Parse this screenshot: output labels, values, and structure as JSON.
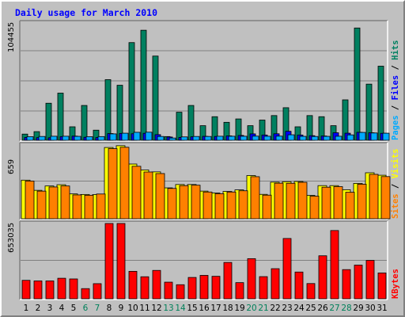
{
  "chart_data": {
    "type": "bar",
    "title": "Daily usage for March 2010",
    "categories": [
      "1",
      "2",
      "3",
      "4",
      "5",
      "6",
      "7",
      "8",
      "9",
      "10",
      "11",
      "12",
      "13",
      "14",
      "15",
      "16",
      "17",
      "18",
      "19",
      "20",
      "21",
      "22",
      "23",
      "24",
      "25",
      "26",
      "27",
      "28",
      "29",
      "30",
      "31"
    ],
    "weekend_days": [
      "6",
      "7",
      "13",
      "14",
      "20",
      "21",
      "27",
      "28"
    ],
    "panels": [
      {
        "id": "hits",
        "max_label": "104455",
        "ylim": [
          0,
          104455
        ],
        "axis_labels": [
          {
            "text": "Pages",
            "color": "#00aaff"
          },
          {
            "text": " / ",
            "color": "#000000"
          },
          {
            "text": "Files",
            "color": "#0000ff"
          },
          {
            "text": " / ",
            "color": "#000000"
          },
          {
            "text": "Hits",
            "color": "#008060"
          }
        ],
        "series": [
          {
            "name": "Hits",
            "color": "#008060",
            "values": [
              5500,
              7700,
              33000,
              42000,
              12000,
              31000,
              9000,
              54000,
              49000,
              87000,
              98000,
              75000,
              3300,
              25000,
              31000,
              13000,
              21000,
              16000,
              19000,
              13000,
              18000,
              22000,
              29000,
              12000,
              22000,
              21000,
              13000,
              36000,
              100000,
              50000,
              66000
            ]
          },
          {
            "name": "Files",
            "color": "#0000ff",
            "values": [
              2500,
              2300,
              2200,
              3300,
              3700,
              2700,
              2400,
              6000,
              6100,
              5800,
              6200,
              5000,
              2900,
              2500,
              3100,
              3500,
              3400,
              3900,
              4300,
              5700,
              4700,
              5800,
              8000,
              4700,
              4100,
              3800,
              6700,
              6300,
              7100,
              6700,
              6200
            ]
          },
          {
            "name": "Pages",
            "color": "#00aaff",
            "values": [
              3200,
              3400,
              3600,
              3600,
              3500,
              3200,
              3300,
              5700,
              6300,
              7100,
              7200,
              3400,
              2000,
              3000,
              3400,
              3400,
              3600,
              3600,
              3600,
              3700,
              3600,
              3700,
              4900,
              3500,
              3400,
              3500,
              3600,
              4800,
              7000,
              6500,
              6300
            ]
          }
        ]
      },
      {
        "id": "visits",
        "max_label": "659",
        "ylim": [
          0,
          659
        ],
        "axis_labels": [
          {
            "text": "Sites",
            "color": "#ff8000"
          },
          {
            "text": " / ",
            "color": "#000000"
          },
          {
            "text": "Visits",
            "color": "#ffff00"
          }
        ],
        "series": [
          {
            "name": "Visits",
            "color": "#ffff00",
            "values": [
              345,
              254,
              293,
              304,
              222,
              217,
              216,
              637,
              653,
              489,
              436,
              419,
              276,
              306,
              306,
              247,
              230,
              244,
              258,
              386,
              218,
              327,
              331,
              333,
              209,
              296,
              296,
              259,
              316,
              411,
              389
            ]
          },
          {
            "name": "Sites",
            "color": "#ff8000",
            "values": [
              337,
              247,
              284,
              293,
              213,
              210,
              221,
              627,
              639,
              469,
              418,
              404,
              271,
              296,
              300,
              239,
              224,
              239,
              250,
              376,
              211,
              318,
              317,
              326,
              202,
              282,
              287,
              237,
              309,
              397,
              377
            ]
          }
        ]
      },
      {
        "id": "kbytes",
        "max_label": "653035",
        "ylim": [
          0,
          653035
        ],
        "axis_labels": [
          {
            "text": "KBytes",
            "color": "#ff0000"
          }
        ],
        "series": [
          {
            "name": "KBytes",
            "color": "#ff0000",
            "values": [
              160000,
              155000,
              155000,
              178000,
              172000,
              88000,
              131000,
              653035,
              653035,
              238000,
              191000,
              246000,
              144000,
              122000,
              185000,
              203000,
              195000,
              315000,
              140000,
              348000,
              192000,
              261000,
              523000,
              232000,
              132000,
              373000,
              592000,
              253000,
              292000,
              333000,
              224000
            ]
          }
        ]
      }
    ]
  }
}
